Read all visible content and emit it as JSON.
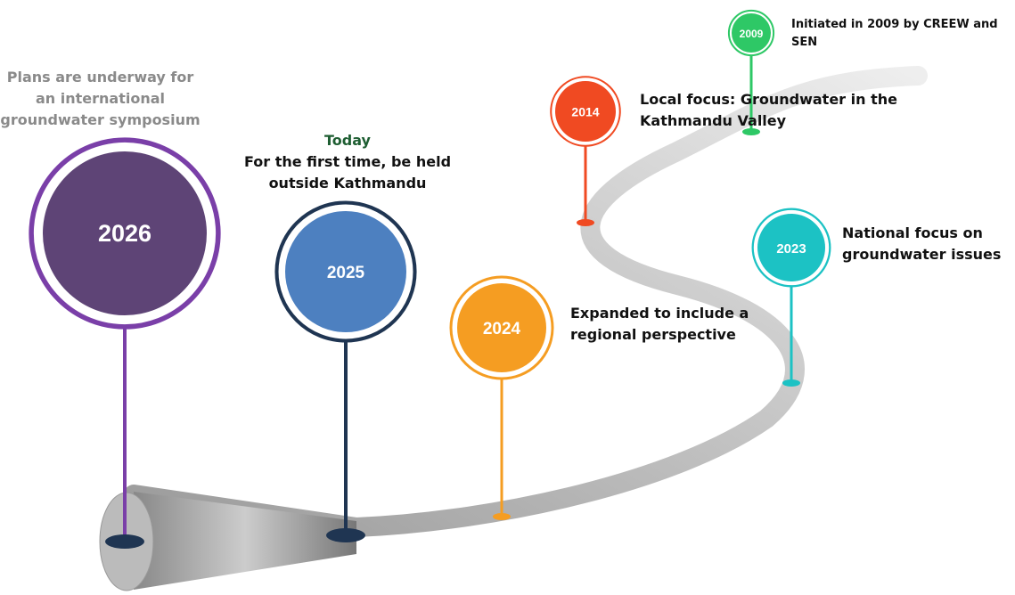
{
  "milestones": [
    {
      "year": "2009",
      "text": "Initiated in 2009 by CREEW and SEN"
    },
    {
      "year": "2014",
      "text": "Local focus: Groundwater in the Kathmandu Valley"
    },
    {
      "year": "2023",
      "text": "National focus on groundwater issues"
    },
    {
      "year": "2024",
      "text": "Expanded to include a regional perspective"
    },
    {
      "year": "2025",
      "tag": "Today",
      "text": "For the first time, be held outside Kathmandu"
    },
    {
      "year": "2026",
      "text": "Plans are underway for an international groundwater symposium"
    }
  ]
}
